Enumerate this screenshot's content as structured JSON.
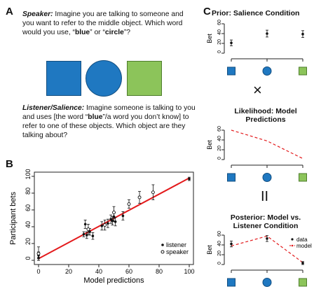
{
  "panel_a": {
    "letter": "A",
    "speaker_label": "Speaker:",
    "speaker_text_1": " Imagine you are talking to someone and you want to refer to the middle object. Which word would you use, “",
    "speaker_word_1": "blue",
    "speaker_text_2": "” or “",
    "speaker_word_2": "circle",
    "speaker_text_3": "”?",
    "listener_label": "Listener/Salience:",
    "listener_text_1": " Imagine someone is talking to you and uses [the word “",
    "listener_word": "blue",
    "listener_text_2": "”/a word you don’t know] to refer to one of these objects. Which object are they talking about?",
    "shapes": [
      "blue-square",
      "blue-circle",
      "green-square"
    ],
    "colors": {
      "blue": "#1f78c1",
      "green": "#8cc45a"
    }
  },
  "panel_b": {
    "letter": "B",
    "chart_data": {
      "type": "scatter",
      "xlabel": "Model predictions",
      "ylabel": "Participant bets",
      "xlim": [
        0,
        100
      ],
      "ylim": [
        0,
        100
      ],
      "x_ticks": [
        "0",
        "20",
        "40",
        "60",
        "80",
        "100"
      ],
      "y_ticks": [
        "0",
        "20",
        "40",
        "60",
        "80",
        "100"
      ],
      "legend_position": "bottom-right",
      "series": [
        {
          "name": "listener",
          "marker": "filled",
          "points": [
            {
              "x": 0,
              "y": 3,
              "err": 3
            },
            {
              "x": 0,
              "y": 6,
              "err": 4
            },
            {
              "x": 30,
              "y": 31,
              "err": 3
            },
            {
              "x": 31,
              "y": 43,
              "err": 5
            },
            {
              "x": 32,
              "y": 30,
              "err": 4
            },
            {
              "x": 34,
              "y": 34,
              "err": 4
            },
            {
              "x": 36,
              "y": 29,
              "err": 4
            },
            {
              "x": 42,
              "y": 41,
              "err": 5
            },
            {
              "x": 46,
              "y": 44,
              "err": 5
            },
            {
              "x": 48,
              "y": 49,
              "err": 5
            },
            {
              "x": 49,
              "y": 47,
              "err": 5
            },
            {
              "x": 50,
              "y": 52,
              "err": 6
            },
            {
              "x": 51,
              "y": 46,
              "err": 5
            },
            {
              "x": 56,
              "y": 53,
              "err": 5
            },
            {
              "x": 100,
              "y": 97,
              "err": 2
            }
          ]
        },
        {
          "name": "speaker",
          "marker": "open",
          "points": [
            {
              "x": 0,
              "y": 8,
              "err": 8
            },
            {
              "x": 33,
              "y": 37,
              "err": 6
            },
            {
              "x": 44,
              "y": 42,
              "err": 6
            },
            {
              "x": 50,
              "y": 57,
              "err": 7
            },
            {
              "x": 60,
              "y": 67,
              "err": 5
            },
            {
              "x": 67,
              "y": 75,
              "err": 7
            },
            {
              "x": 76,
              "y": 81,
              "err": 9
            }
          ]
        }
      ],
      "fit_line": {
        "x": [
          0,
          100
        ],
        "y": [
          2,
          98
        ],
        "color": "#e31a1c"
      }
    }
  },
  "panel_c": {
    "letter": "C",
    "times_symbol": "×",
    "equals_symbol": "II",
    "charts": [
      {
        "title": "Prior: Salience Condition",
        "ylabel": "Bet",
        "ylim": [
          0,
          60
        ],
        "y_ticks": [
          "0",
          "20",
          "40",
          "60"
        ],
        "type": "scatter",
        "points": [
          {
            "x": 1,
            "y": 21,
            "err": 6
          },
          {
            "x": 2,
            "y": 40,
            "err": 7
          },
          {
            "x": 3,
            "y": 39,
            "err": 7
          }
        ]
      },
      {
        "title": "Likelihood: Model Predictions",
        "ylabel": "Bet",
        "ylim": [
          0,
          60
        ],
        "y_ticks": [
          "0",
          "20",
          "40",
          "60"
        ],
        "type": "line",
        "model": [
          60,
          38,
          2
        ]
      },
      {
        "title": "Posterior: Model vs. Listener Condition",
        "ylabel": "Bet",
        "ylim": [
          0,
          60
        ],
        "y_ticks": [
          "0",
          "20",
          "40",
          "60"
        ],
        "type": "line+scatter",
        "legend": [
          "data",
          "model"
        ],
        "data": [
          {
            "x": 1,
            "y": 42,
            "err": 6
          },
          {
            "x": 2,
            "y": 53,
            "err": 6
          },
          {
            "x": 3,
            "y": 3,
            "err": 3
          }
        ],
        "model": [
          38,
          58,
          4
        ]
      }
    ]
  }
}
